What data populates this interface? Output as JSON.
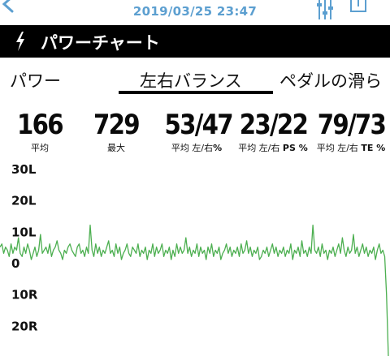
{
  "header": {
    "datetime": "2019/03/25 23:47",
    "icons": {
      "back": "chevron-left-icon",
      "filter": "sliders-icon",
      "share": "share-icon"
    },
    "accent_color": "#5c9fd0"
  },
  "titlebar": {
    "icon": "lightning-bolt-icon",
    "title": "パワーチャート"
  },
  "tabs": [
    {
      "label": "パワー",
      "selected": false
    },
    {
      "label": "左右バランス",
      "selected": true
    },
    {
      "label": "ペダルの滑ら",
      "selected": false
    }
  ],
  "stats": [
    {
      "value": "166",
      "label": "平均",
      "label_bold": "",
      "label_suffix": ""
    },
    {
      "value": "729",
      "label": "最大",
      "label_bold": "",
      "label_suffix": ""
    },
    {
      "value": "53/47",
      "label": "平均 左/右",
      "label_bold": "",
      "label_suffix": "%"
    },
    {
      "value": "23/22",
      "label": "平均 左/右 ",
      "label_bold": "PS",
      "label_suffix": " %"
    },
    {
      "value": "79/73",
      "label": "平均 左/右 ",
      "label_bold": "TE",
      "label_suffix": " %"
    }
  ],
  "chart_data": {
    "type": "line",
    "ytick_labels": [
      "30L",
      "20L",
      "10L",
      "0",
      "10R",
      "20R"
    ],
    "ytick_values": [
      30,
      20,
      10,
      0,
      -10,
      -20
    ],
    "ylim": [
      -30,
      32
    ],
    "line_color": "#4caf50",
    "grid": false,
    "series": [
      {
        "values": [
          5,
          6,
          3,
          5,
          4,
          2,
          6,
          3,
          5,
          4,
          8,
          3,
          2,
          5,
          3,
          6,
          4,
          1,
          3,
          5,
          2,
          4,
          9,
          3,
          4,
          5,
          3,
          6,
          2,
          4,
          5,
          7,
          4,
          3,
          1,
          4,
          3,
          5,
          6,
          4,
          3,
          2,
          5,
          6,
          3,
          4,
          2,
          5,
          3,
          12,
          4,
          2,
          6,
          3,
          5,
          2,
          4,
          3,
          5,
          7,
          3,
          4,
          2,
          6,
          3,
          5,
          1,
          3,
          4,
          6,
          3,
          2,
          5,
          4,
          3,
          6,
          2,
          4,
          3,
          5,
          1,
          4,
          3,
          6,
          2,
          5,
          3,
          4,
          6,
          2,
          4,
          3,
          5,
          1,
          4,
          2,
          6,
          3,
          5,
          3,
          4,
          8,
          3,
          5,
          2,
          4,
          3,
          6,
          2,
          5,
          3,
          4,
          1,
          5,
          3,
          6,
          2,
          4,
          3,
          5,
          1,
          3,
          4,
          6,
          3,
          5,
          2,
          4,
          3,
          5,
          2,
          6,
          3,
          4,
          7,
          3,
          5,
          2,
          4,
          3,
          5,
          1,
          2,
          4,
          3,
          5,
          2,
          4,
          6,
          3,
          5,
          2,
          4,
          3,
          5,
          2,
          4,
          3,
          6,
          1,
          4,
          3,
          5,
          2,
          7,
          3,
          4,
          2,
          5,
          3,
          12,
          4,
          3,
          5,
          2,
          6,
          3,
          4,
          1,
          4,
          3,
          5,
          2,
          4,
          6,
          3,
          8,
          4,
          2,
          5,
          3,
          4,
          9,
          3,
          5,
          2,
          4,
          6,
          3,
          5,
          2,
          4,
          3,
          5,
          1,
          4,
          6,
          3,
          4,
          2,
          -10,
          -30
        ]
      }
    ]
  }
}
